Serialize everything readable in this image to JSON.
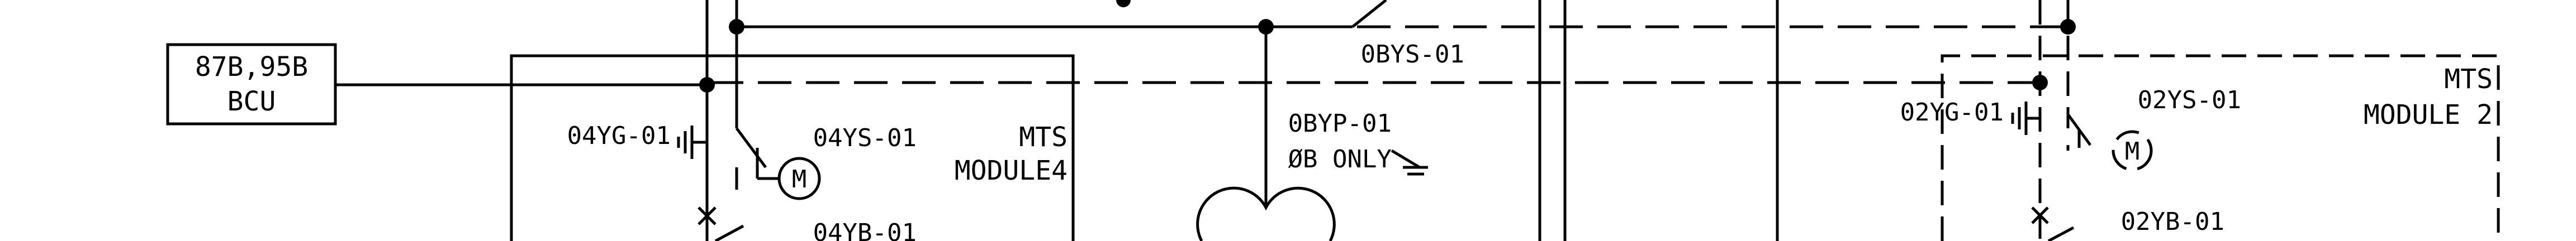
{
  "bcu_box": {
    "line1": "87B,95B",
    "line2": "BCU"
  },
  "module4": {
    "title_line1": "MTS",
    "title_line2": "MODULE4",
    "switch_label": "04YS-01",
    "ground_label": "04YG-01",
    "breaker_label": "04YB-01",
    "motor_symbol": "M"
  },
  "module2": {
    "title_line1": "MTS",
    "title_line2": "MODULE 2",
    "switch_label": "02YS-01",
    "ground_label": "02YG-01",
    "breaker_label": "02YB-01",
    "motor_symbol": "M"
  },
  "center": {
    "switch_label": "0BYS-01",
    "pt_label": "0BYP-01",
    "pt_note": "ØB ONLY"
  }
}
